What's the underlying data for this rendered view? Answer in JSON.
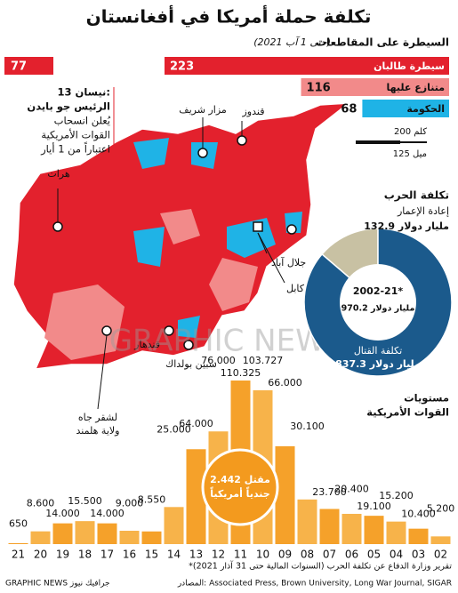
{
  "header": {
    "title": "تكلفة حملة أمريكا في أفغانستان"
  },
  "annotation": {
    "number": 77,
    "lines": [
      "13 نيسان:",
      "الرئيس جو بايدن",
      "يُعلن انسحاب",
      "القوات الأمريكية",
      "اعتباراً من 1 أيار"
    ]
  },
  "map": {
    "labels": [
      "هرات",
      "مزار شريف",
      "قندوز",
      "جلال آباد",
      "كابل",
      "قندهار",
      "سبين بولداك",
      "لشقر جاه",
      "ولاية هلمند"
    ],
    "scale": {
      "km_label": "200 كلم",
      "mi_label": "125 ميل"
    }
  },
  "watermark": "GRAPHIC NEWS",
  "chart_data": [
    {
      "type": "hbar",
      "title": "السيطرة على المقاطعات",
      "subtitle": "(حتى 1 آب 2021)",
      "categories": [
        "سيطرة طالبان",
        "متنازع عليها",
        "الحكومة"
      ],
      "values": [
        223,
        116,
        68
      ],
      "colors": [
        "#e3212d",
        "#f28a8a",
        "#1fb3e6"
      ]
    },
    {
      "type": "pie",
      "title": "تكلفة الحرب",
      "categories": [
        "إعادة الإعمار",
        "تكلفة القتال"
      ],
      "values": [
        132.9,
        837.3
      ],
      "value_labels": [
        "132.9 مليار دولار",
        "837.3 مليار دولار"
      ],
      "colors": [
        "#c8c1a3",
        "#1b5a8c"
      ],
      "total_label": "2002-21*",
      "total": 970.2,
      "total_value_label": "970.2 مليار دولار"
    },
    {
      "type": "bar",
      "title_lines": [
        "مستويات",
        "القوات الأمريكية"
      ],
      "categories": [
        "21",
        "20",
        "19",
        "18",
        "17",
        "16",
        "15",
        "14",
        "13",
        "12",
        "11",
        "10",
        "09",
        "08",
        "07",
        "06",
        "05",
        "04",
        "03",
        "02"
      ],
      "values": [
        650,
        8600,
        14000,
        15500,
        14000,
        9000,
        8550,
        25000,
        64000,
        76000,
        110325,
        103727,
        66000,
        30100,
        23700,
        20400,
        19100,
        15200,
        10400,
        5200
      ],
      "value_labels": [
        "650",
        "8.600",
        "14.000",
        "15.500",
        "14.000",
        "9.000",
        "8.550",
        "25.000",
        "64.000",
        "76.000",
        "110.325",
        "103.727",
        "66.000",
        "30.100",
        "23.700",
        "20.400",
        "19.100",
        "15.200",
        "10.400",
        "5.200"
      ],
      "color": "#f5a12a",
      "deaths_lines": [
        "مقتل 2.442",
        "جندياً أمريكياً"
      ]
    }
  ],
  "footnote": "*تقرير وزارة الدفاع عن تكلفة الحرب (السنوات المالية حتى 31 آذار 2021)",
  "source": "المصادر: Associated Press, Brown University, Long War Journal, SIGAR",
  "brand": "GRAPHIC NEWS جرافيك نيوز"
}
